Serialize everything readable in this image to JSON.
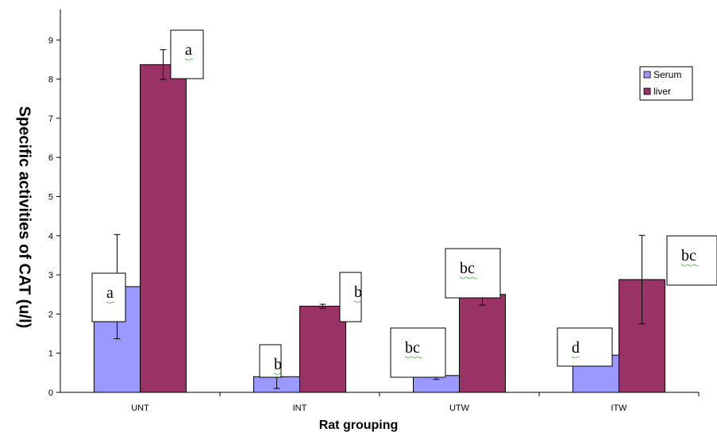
{
  "chart_data": {
    "type": "bar",
    "title": "",
    "xlabel": "Rat grouping",
    "ylabel": "Specific activities of CAT (u/l)",
    "categories": [
      "UNT",
      "INT",
      "UTW",
      "ITW"
    ],
    "ylim": [
      0,
      9.7
    ],
    "yticks": [
      0,
      1,
      2,
      3,
      4,
      5,
      6,
      7,
      8,
      9
    ],
    "grid": false,
    "legend_position": "top-right",
    "series": [
      {
        "name": "Serum",
        "color": "#9999ff",
        "values": [
          2.7,
          0.4,
          0.43,
          0.95
        ],
        "errors": [
          1.33,
          0.3,
          0.1,
          0.27
        ]
      },
      {
        "name": "liver",
        "color": "#993366",
        "values": [
          8.37,
          2.2,
          2.5,
          2.88
        ],
        "errors": [
          0.38,
          0.05,
          0.27,
          1.13
        ]
      }
    ],
    "annotations": [
      "a",
      "a",
      "b",
      "b",
      "bc",
      "bc",
      "d",
      "bc"
    ]
  }
}
